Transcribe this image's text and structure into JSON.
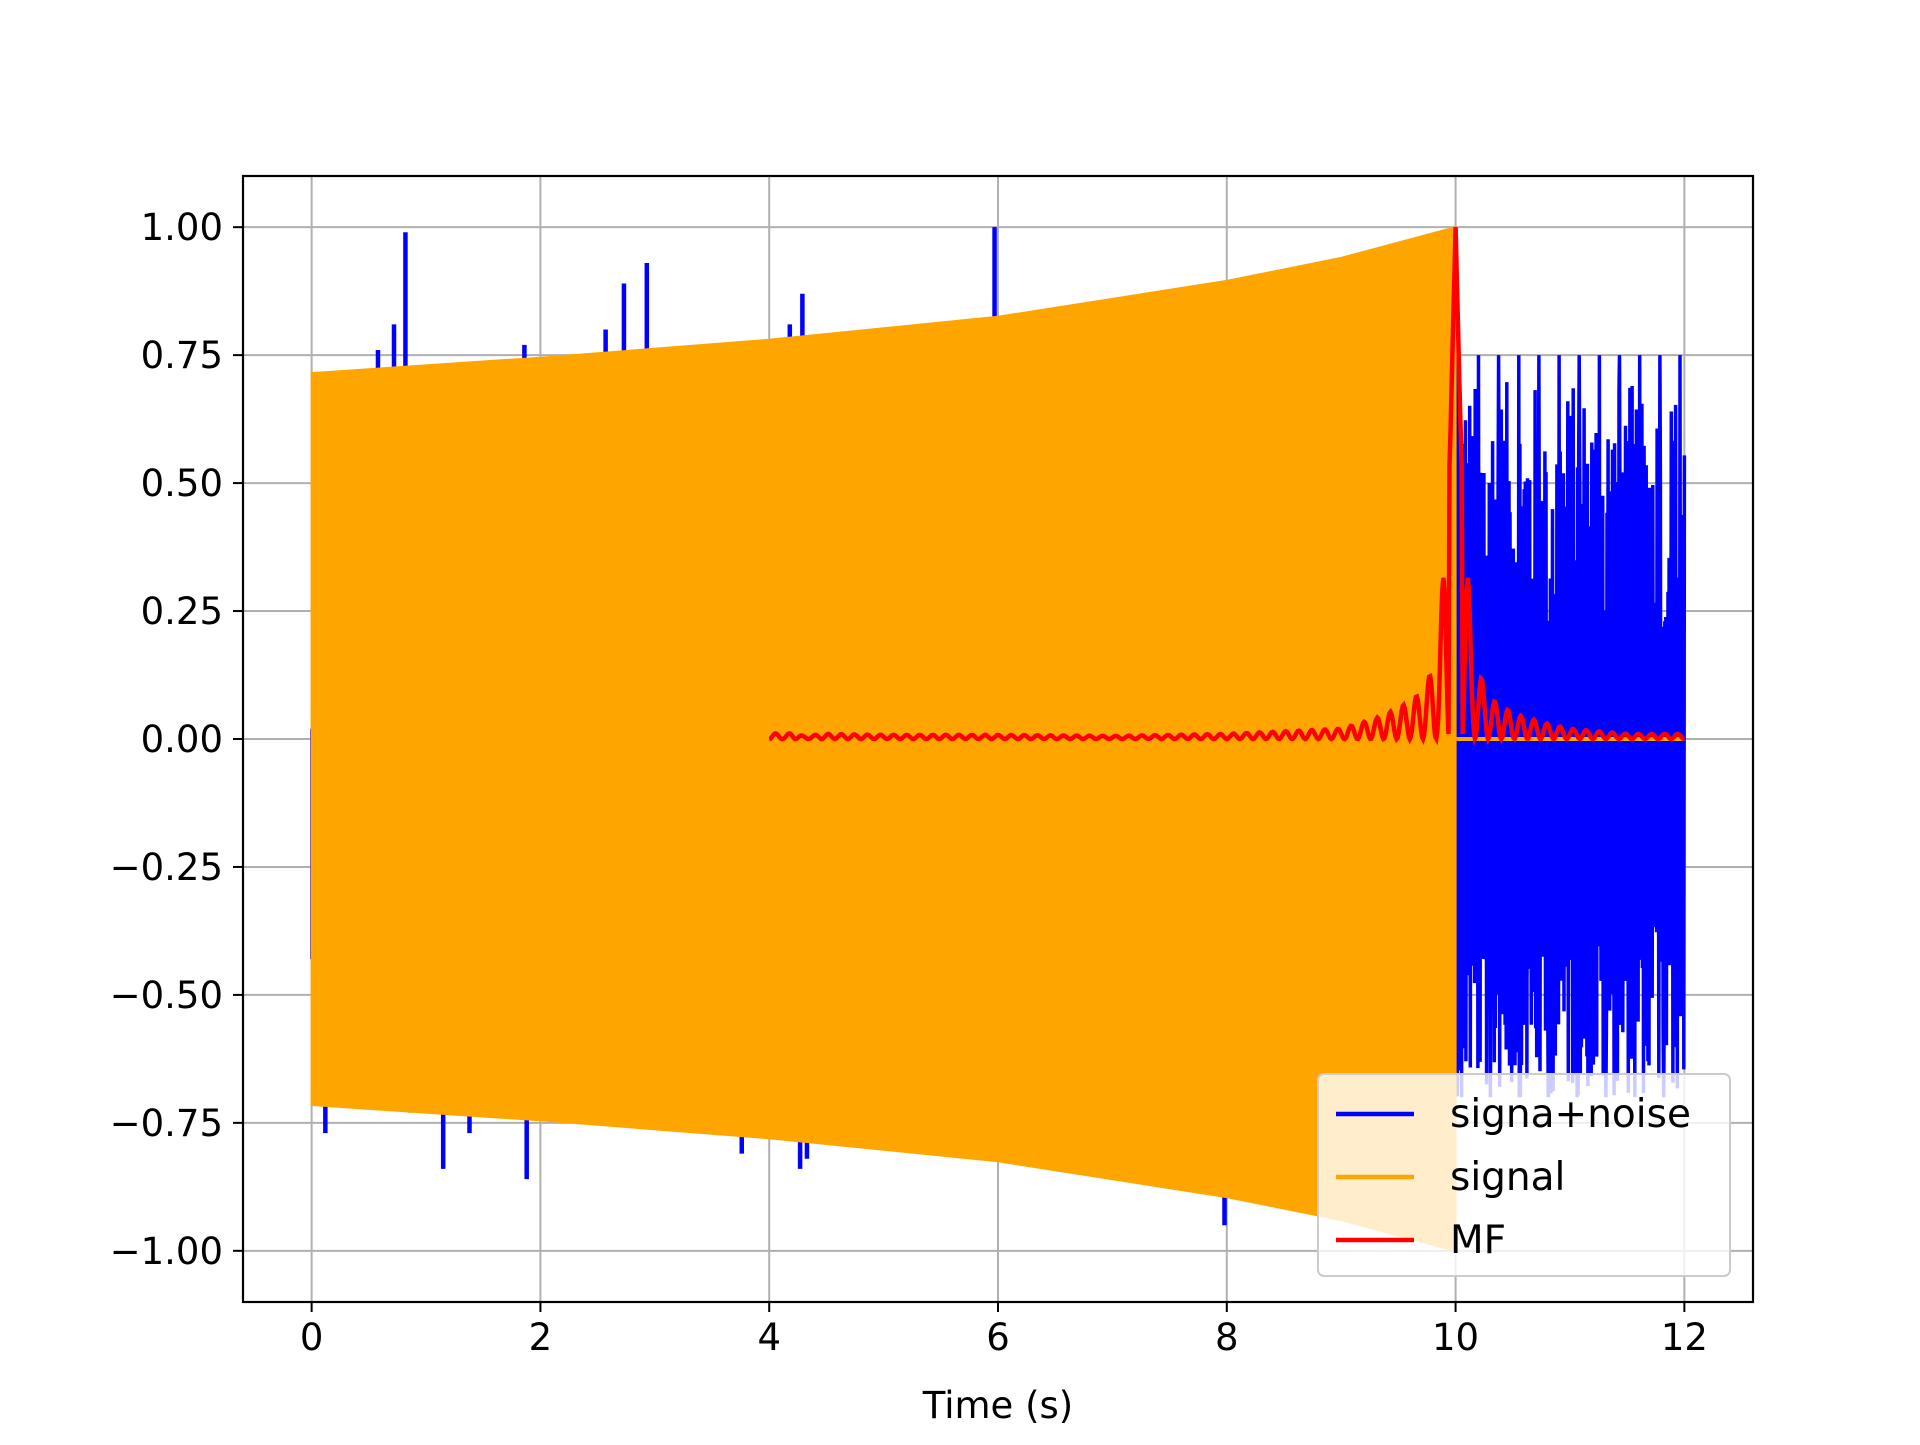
{
  "chart_data": {
    "type": "line",
    "title": "",
    "xlabel": "Time (s)",
    "ylabel": "",
    "xlim": [
      -0.6,
      12.6
    ],
    "ylim": [
      -1.1,
      1.1
    ],
    "xticks": [
      0,
      2,
      4,
      6,
      8,
      10,
      12
    ],
    "xtick_labels": [
      "0",
      "2",
      "4",
      "6",
      "8",
      "10",
      "12"
    ],
    "yticks": [
      -1.0,
      -0.75,
      -0.5,
      -0.25,
      0.0,
      0.25,
      0.5,
      0.75,
      1.0
    ],
    "ytick_labels": [
      "−1.00",
      "−0.75",
      "−0.50",
      "−0.25",
      "0.00",
      "0.25",
      "0.50",
      "0.75",
      "1.00"
    ],
    "grid": true,
    "legend_position": "lower right",
    "series": [
      {
        "name": "signa+noise",
        "color": "#0000ff",
        "segments": [
          {
            "x_range": [
              0,
              10
            ],
            "description_values": {
              "peaks_above": [
                [
                  0.58,
                  0.76
                ],
                [
                  0.72,
                  0.81
                ],
                [
                  0.82,
                  0.99
                ],
                [
                  1.86,
                  0.77
                ],
                [
                  2.57,
                  0.8
                ],
                [
                  2.73,
                  0.89
                ],
                [
                  2.93,
                  0.93
                ],
                [
                  4.18,
                  0.81
                ],
                [
                  4.29,
                  0.87
                ],
                [
                  5.97,
                  1.0
                ]
              ],
              "peaks_below": [
                [
                  0.12,
                  -0.77
                ],
                [
                  0.86,
                  -0.73
                ],
                [
                  1.15,
                  -0.84
                ],
                [
                  1.38,
                  -0.77
                ],
                [
                  1.88,
                  -0.86
                ],
                [
                  3.76,
                  -0.81
                ],
                [
                  4.27,
                  -0.84
                ],
                [
                  4.33,
                  -0.82
                ],
                [
                  7.98,
                  -0.95
                ]
              ]
            }
          },
          {
            "x_range": [
              10,
              12
            ],
            "amplitude_range": [
              -0.7,
              0.8
            ]
          }
        ]
      },
      {
        "name": "signal",
        "color": "#ffa500",
        "envelope": {
          "x": [
            0,
            2,
            4,
            6,
            8,
            9,
            10
          ],
          "amplitude": [
            0.715,
            0.745,
            0.78,
            0.825,
            0.895,
            0.94,
            1.0
          ]
        },
        "after_10s": 0.0
      },
      {
        "name": "MF",
        "color": "#ff0000",
        "x": [
          4.0,
          4.1,
          4.2,
          4.3,
          4.5,
          5.0,
          6.0,
          7.0,
          8.0,
          8.5,
          9.0,
          9.3,
          9.5,
          9.7,
          9.85,
          9.95,
          10.0,
          10.05,
          10.15,
          10.3,
          10.5,
          10.8,
          11.0,
          11.5,
          12.0
        ],
        "y": [
          0.015,
          0.008,
          0.012,
          0.006,
          0.01,
          0.008,
          0.008,
          0.006,
          0.01,
          0.015,
          0.02,
          0.04,
          0.06,
          0.09,
          0.16,
          0.55,
          1.0,
          0.55,
          0.16,
          0.08,
          0.05,
          0.03,
          0.02,
          0.01,
          0.01
        ]
      }
    ]
  }
}
